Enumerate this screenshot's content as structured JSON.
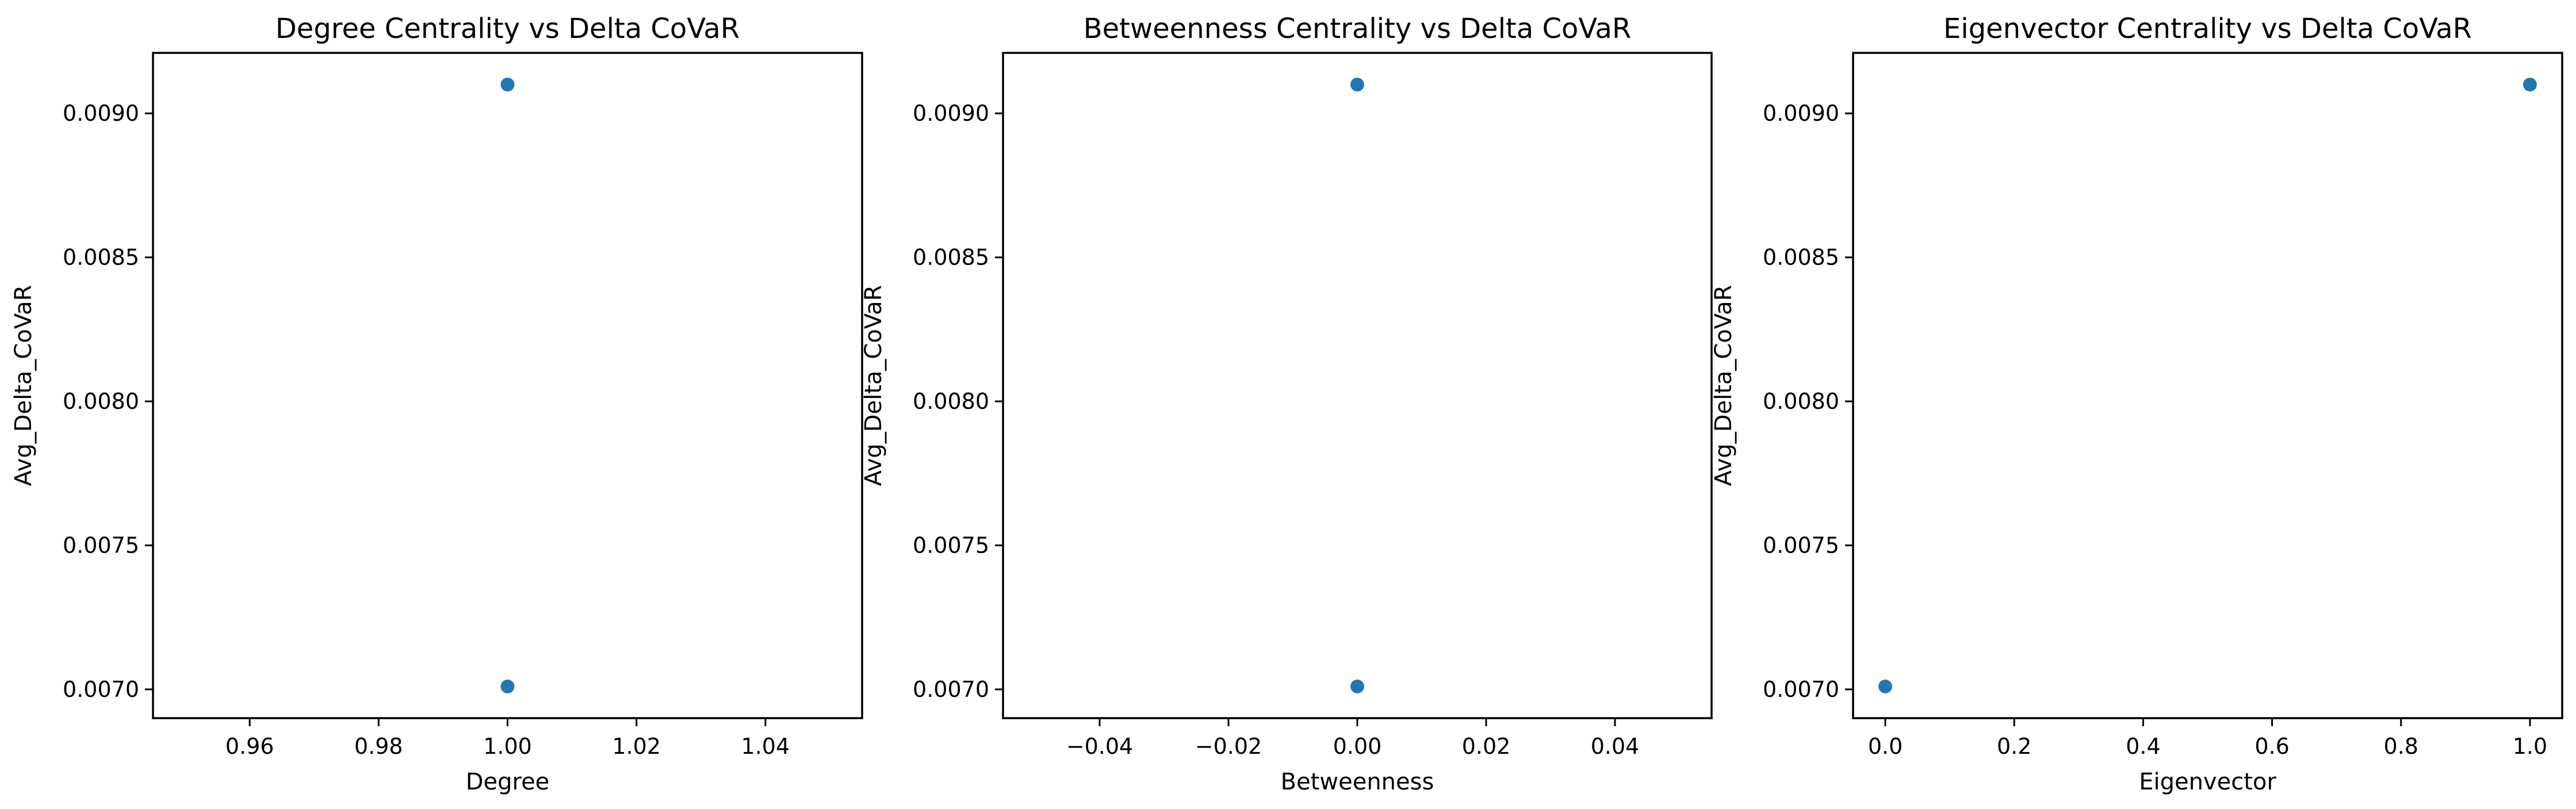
{
  "chart_data": [
    {
      "type": "scatter",
      "title": "Degree Centrality vs Delta CoVaR",
      "xlabel": "Degree",
      "ylabel": "Avg_Delta_CoVaR",
      "xlim": [
        0.945,
        1.055
      ],
      "ylim": [
        0.0069,
        0.00921
      ],
      "xticks": [
        0.96,
        0.98,
        1.0,
        1.02,
        1.04
      ],
      "xtick_labels": [
        "0.96",
        "0.98",
        "1.00",
        "1.02",
        "1.04"
      ],
      "yticks": [
        0.007,
        0.0075,
        0.008,
        0.0085,
        0.009
      ],
      "ytick_labels": [
        "0.0070",
        "0.0075",
        "0.0080",
        "0.0085",
        "0.0090"
      ],
      "grid": false,
      "color": "#1f77b4",
      "points": [
        {
          "x": 1.0,
          "y": 0.0091
        },
        {
          "x": 1.0,
          "y": 0.00701
        }
      ]
    },
    {
      "type": "scatter",
      "title": "Betweenness Centrality vs Delta CoVaR",
      "xlabel": "Betweenness",
      "ylabel": "Avg_Delta_CoVaR",
      "xlim": [
        -0.055,
        0.055
      ],
      "ylim": [
        0.0069,
        0.00921
      ],
      "xticks": [
        -0.04,
        -0.02,
        0.0,
        0.02,
        0.04
      ],
      "xtick_labels": [
        "−0.04",
        "−0.02",
        "0.00",
        "0.02",
        "0.04"
      ],
      "yticks": [
        0.007,
        0.0075,
        0.008,
        0.0085,
        0.009
      ],
      "ytick_labels": [
        "0.0070",
        "0.0075",
        "0.0080",
        "0.0085",
        "0.0090"
      ],
      "grid": false,
      "color": "#1f77b4",
      "points": [
        {
          "x": 0.0,
          "y": 0.0091
        },
        {
          "x": 0.0,
          "y": 0.00701
        }
      ]
    },
    {
      "type": "scatter",
      "title": "Eigenvector Centrality vs Delta CoVaR",
      "xlabel": "Eigenvector",
      "ylabel": "Avg_Delta_CoVaR",
      "xlim": [
        -0.05,
        1.05
      ],
      "ylim": [
        0.0069,
        0.00921
      ],
      "xticks": [
        0.0,
        0.2,
        0.4,
        0.6,
        0.8,
        1.0
      ],
      "xtick_labels": [
        "0.0",
        "0.2",
        "0.4",
        "0.6",
        "0.8",
        "1.0"
      ],
      "yticks": [
        0.007,
        0.0075,
        0.008,
        0.0085,
        0.009
      ],
      "ytick_labels": [
        "0.0070",
        "0.0075",
        "0.0080",
        "0.0085",
        "0.0090"
      ],
      "grid": false,
      "color": "#1f77b4",
      "points": [
        {
          "x": 1.0,
          "y": 0.0091
        },
        {
          "x": 0.0,
          "y": 0.00701
        }
      ]
    }
  ]
}
